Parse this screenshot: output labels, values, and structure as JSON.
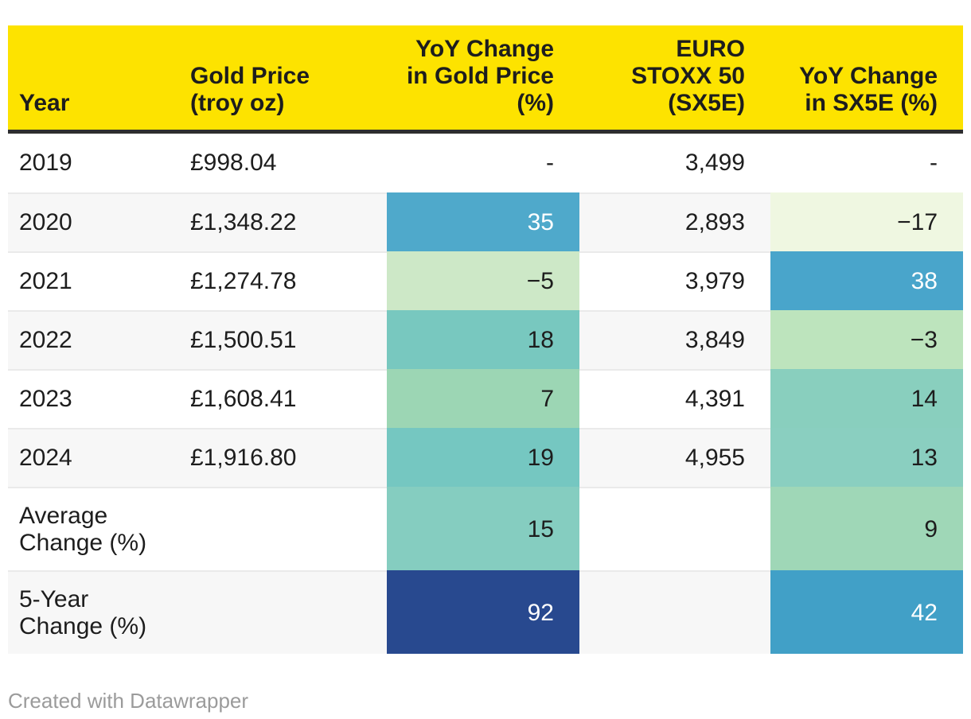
{
  "colors": {
    "header_bg": "#fde300",
    "header_border": "#2e2e2e",
    "row_stripe": "#f7f7f7",
    "row_separator": "#eaeaea",
    "body_text": "#1d1d1d",
    "credit_text": "#9b9b9b",
    "heat_dark_text": "#1d1d1d",
    "heat_light_text": "#ffffff"
  },
  "header": {
    "year": "Year",
    "gold_price": "Gold Price\n(troy oz)",
    "gold_yoy": "YoY Change\nin Gold Price\n(%)",
    "sx5e": "EURO\nSTOXX 50\n(SX5E)",
    "sx5e_yoy": "YoY Change\nin SX5E (%)"
  },
  "rows": [
    {
      "year": "2019",
      "gold_price": "£998.04",
      "gold_yoy": "-",
      "gold_yoy_bg": "",
      "gold_yoy_fg": "#1d1d1d",
      "sx5e": "3,499",
      "sx5e_yoy": "-",
      "sx5e_yoy_bg": "",
      "sx5e_yoy_fg": "#1d1d1d"
    },
    {
      "year": "2020",
      "gold_price": "£1,348.22",
      "gold_yoy": "35",
      "gold_yoy_bg": "#4fa9cb",
      "gold_yoy_fg": "#ffffff",
      "sx5e": "2,893",
      "sx5e_yoy": "−17",
      "sx5e_yoy_bg": "#eff7e1",
      "sx5e_yoy_fg": "#1d1d1d"
    },
    {
      "year": "2021",
      "gold_price": "£1,274.78",
      "gold_yoy": "−5",
      "gold_yoy_bg": "#cde8c7",
      "gold_yoy_fg": "#1d1d1d",
      "sx5e": "3,979",
      "sx5e_yoy": "38",
      "sx5e_yoy_bg": "#49a5cb",
      "sx5e_yoy_fg": "#ffffff"
    },
    {
      "year": "2022",
      "gold_price": "£1,500.51",
      "gold_yoy": "18",
      "gold_yoy_bg": "#78c8bf",
      "gold_yoy_fg": "#1d1d1d",
      "sx5e": "3,849",
      "sx5e_yoy": "−3",
      "sx5e_yoy_bg": "#bde4bd",
      "sx5e_yoy_fg": "#1d1d1d"
    },
    {
      "year": "2023",
      "gold_price": "£1,608.41",
      "gold_yoy": "7",
      "gold_yoy_bg": "#9cd6b4",
      "gold_yoy_fg": "#1d1d1d",
      "sx5e": "4,391",
      "sx5e_yoy": "14",
      "sx5e_yoy_bg": "#89cfbe",
      "sx5e_yoy_fg": "#1d1d1d"
    },
    {
      "year": "2024",
      "gold_price": "£1,916.80",
      "gold_yoy": "19",
      "gold_yoy_bg": "#75c7c1",
      "gold_yoy_fg": "#1d1d1d",
      "sx5e": "4,955",
      "sx5e_yoy": "13",
      "sx5e_yoy_bg": "#8acfc0",
      "sx5e_yoy_fg": "#1d1d1d"
    },
    {
      "year": "Average\nChange (%)",
      "gold_price": "",
      "gold_yoy": "15",
      "gold_yoy_bg": "#85cdc0",
      "gold_yoy_fg": "#1d1d1d",
      "sx5e": "",
      "sx5e_yoy": "9",
      "sx5e_yoy_bg": "#9fd7b7",
      "sx5e_yoy_fg": "#1d1d1d"
    },
    {
      "year": "5-Year\nChange (%)",
      "gold_price": "",
      "gold_yoy": "92",
      "gold_yoy_bg": "#28498f",
      "gold_yoy_fg": "#ffffff",
      "sx5e": "",
      "sx5e_yoy": "42",
      "sx5e_yoy_bg": "#41a0c7",
      "sx5e_yoy_fg": "#ffffff"
    }
  ],
  "footer": {
    "credit": "Created with Datawrapper"
  },
  "chart_data": {
    "type": "table",
    "title": "",
    "columns": [
      "Year",
      "Gold Price (troy oz)",
      "YoY Change in Gold Price (%)",
      "EURO STOXX 50 (SX5E)",
      "YoY Change in SX5E (%)"
    ],
    "rows": [
      [
        "2019",
        998.04,
        null,
        3499,
        null
      ],
      [
        "2020",
        1348.22,
        35,
        2893,
        -17
      ],
      [
        "2021",
        1274.78,
        -5,
        3979,
        38
      ],
      [
        "2022",
        1500.51,
        18,
        3849,
        -3
      ],
      [
        "2023",
        1608.41,
        7,
        4391,
        14
      ],
      [
        "2024",
        1916.8,
        19,
        4955,
        13
      ],
      [
        "Average Change (%)",
        null,
        15,
        null,
        9
      ],
      [
        "5-Year Change (%)",
        null,
        92,
        null,
        42
      ]
    ],
    "heatmap_columns": [
      "YoY Change in Gold Price (%)",
      "YoY Change in SX5E (%)"
    ],
    "heatmap_scale": "green (low/negative) to teal to blue (high), dark navy at max",
    "legend_position": "none",
    "notes": "Striped rows; yellow header band with thick dark underline"
  }
}
